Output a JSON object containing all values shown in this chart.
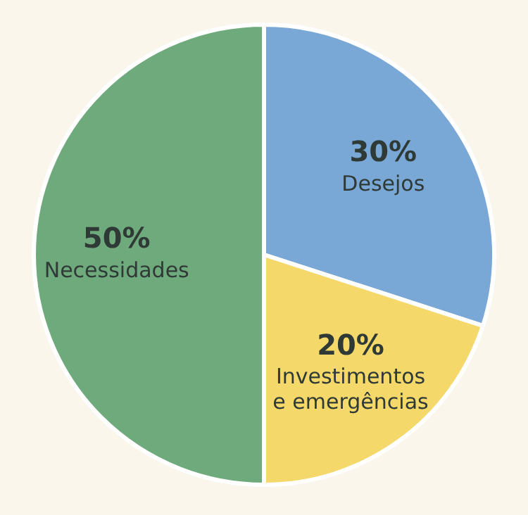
{
  "chart_data": {
    "type": "pie",
    "categories": [
      "Desejos",
      "Investimentos e emergências",
      "Necessidades"
    ],
    "values": [
      30,
      20,
      50
    ],
    "colors": [
      "#7aa8d6",
      "#f5d86a",
      "#6faa7c"
    ],
    "value_labels": [
      "30%",
      "20%",
      "50%"
    ],
    "legend": false
  }
}
